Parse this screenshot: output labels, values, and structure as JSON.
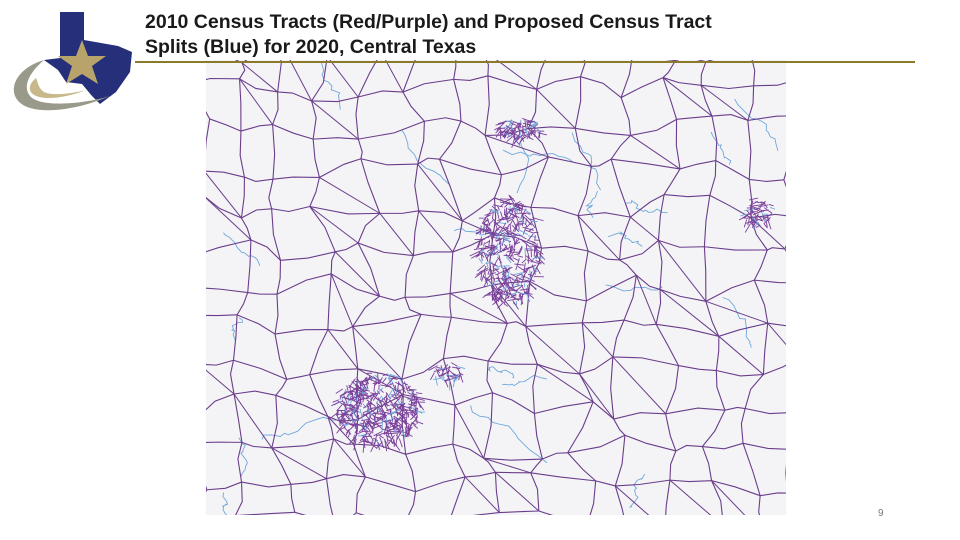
{
  "slide": {
    "title_lines": [
      "2010 Census Tracts (Red/Purple) and Proposed Census Tract",
      "Splits (Blue) for 2020, Central Texas"
    ],
    "page_number": "9"
  }
}
